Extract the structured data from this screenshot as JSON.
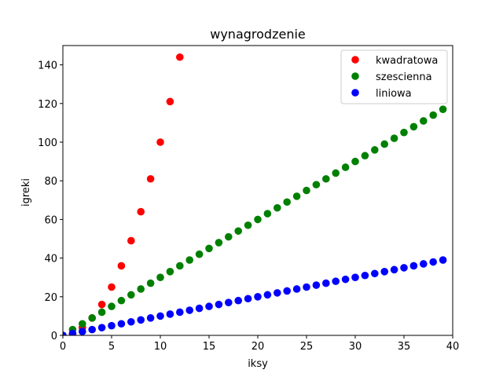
{
  "chart_data": {
    "type": "scatter",
    "title": "wynagrodzenie",
    "xlabel": "iksy",
    "ylabel": "igreki",
    "xlim": [
      0,
      40
    ],
    "ylim": [
      0,
      150
    ],
    "xticks": [
      0,
      5,
      10,
      15,
      20,
      25,
      30,
      35,
      40
    ],
    "yticks": [
      0,
      20,
      40,
      60,
      80,
      100,
      120,
      140
    ],
    "grid": false,
    "legend_position": "top-right",
    "series": [
      {
        "name": "kwadratowa",
        "color": "#ff0000",
        "x": [
          0,
          1,
          2,
          3,
          4,
          5,
          6,
          7,
          8,
          9,
          10,
          11,
          12
        ],
        "y": [
          0,
          1,
          4,
          9,
          16,
          25,
          36,
          49,
          64,
          81,
          100,
          121,
          144
        ]
      },
      {
        "name": "szescienna",
        "color": "#008000",
        "x": [
          0,
          1,
          2,
          3,
          4,
          5,
          6,
          7,
          8,
          9,
          10,
          11,
          12,
          13,
          14,
          15,
          16,
          17,
          18,
          19,
          20,
          21,
          22,
          23,
          24,
          25,
          26,
          27,
          28,
          29,
          30,
          31,
          32,
          33,
          34,
          35,
          36,
          37,
          38,
          39
        ],
        "y": [
          0,
          3,
          6,
          9,
          12,
          15,
          18,
          21,
          24,
          27,
          30,
          33,
          36,
          39,
          42,
          45,
          48,
          51,
          54,
          57,
          60,
          63,
          66,
          69,
          72,
          75,
          78,
          81,
          84,
          87,
          90,
          93,
          96,
          99,
          102,
          105,
          108,
          111,
          114,
          117
        ]
      },
      {
        "name": "liniowa",
        "color": "#0000ff",
        "x": [
          0,
          1,
          2,
          3,
          4,
          5,
          6,
          7,
          8,
          9,
          10,
          11,
          12,
          13,
          14,
          15,
          16,
          17,
          18,
          19,
          20,
          21,
          22,
          23,
          24,
          25,
          26,
          27,
          28,
          29,
          30,
          31,
          32,
          33,
          34,
          35,
          36,
          37,
          38,
          39
        ],
        "y": [
          0,
          1,
          2,
          3,
          4,
          5,
          6,
          7,
          8,
          9,
          10,
          11,
          12,
          13,
          14,
          15,
          16,
          17,
          18,
          19,
          20,
          21,
          22,
          23,
          24,
          25,
          26,
          27,
          28,
          29,
          30,
          31,
          32,
          33,
          34,
          35,
          36,
          37,
          38,
          39
        ]
      }
    ]
  }
}
